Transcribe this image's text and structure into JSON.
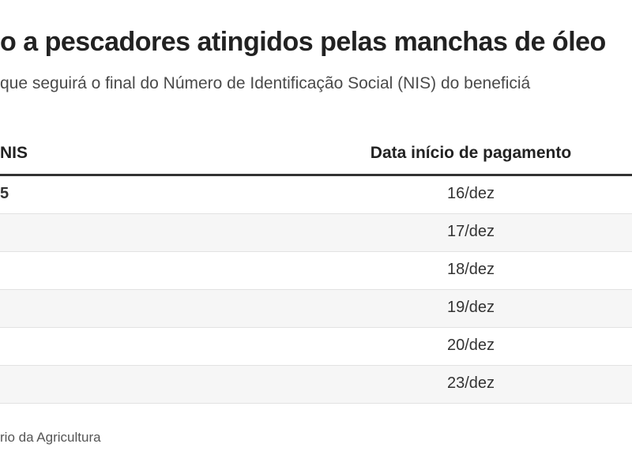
{
  "title": "o a pescadores atingidos pelas manchas de óleo",
  "subtitle": "que seguirá o final do Número de Identificação Social (NIS) do beneficiá",
  "table": {
    "headers": [
      "NIS",
      "Data início de pagamento"
    ],
    "rows": [
      {
        "nis": "5",
        "date": "16/dez"
      },
      {
        "nis": "",
        "date": "17/dez"
      },
      {
        "nis": "",
        "date": "18/dez"
      },
      {
        "nis": "",
        "date": "19/dez"
      },
      {
        "nis": "",
        "date": "20/dez"
      },
      {
        "nis": "",
        "date": "23/dez"
      }
    ]
  },
  "source": "rio da Agricultura"
}
